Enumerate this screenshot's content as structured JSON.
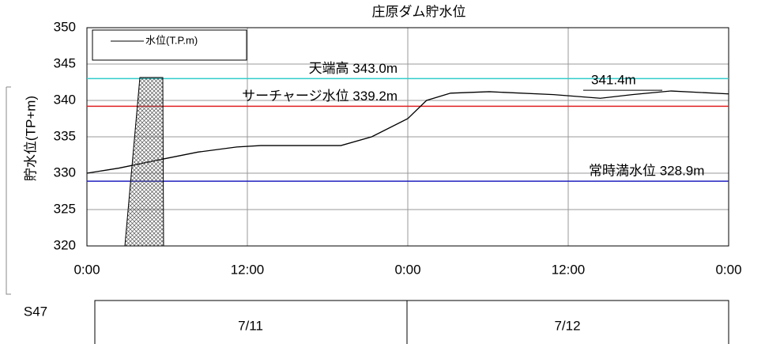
{
  "chart_data": {
    "type": "line",
    "title": "庄原ダム貯水位",
    "y_label": "貯水位(TP+m)",
    "x": [
      0,
      2.4,
      5.3,
      8.3,
      11.2,
      13,
      16,
      19,
      21.3,
      24,
      25.4,
      27.2,
      30.1,
      34.9,
      38.4,
      40.8,
      43.7,
      48
    ],
    "series": [
      {
        "name": "水位(T.P.m)",
        "color": "#000000",
        "values": [
          330.0,
          330.7,
          331.8,
          332.9,
          333.6,
          333.8,
          333.8,
          333.8,
          335.0,
          337.5,
          340.0,
          341.0,
          341.2,
          340.8,
          340.3,
          340.8,
          341.3,
          340.9
        ]
      }
    ],
    "xlim": [
      0,
      48
    ],
    "xticks": [
      {
        "value": 0,
        "label": "0:00"
      },
      {
        "value": 12,
        "label": "12:00"
      },
      {
        "value": 24,
        "label": "0:00"
      },
      {
        "value": 36,
        "label": "12:00"
      },
      {
        "value": 48,
        "label": "0:00"
      }
    ],
    "ylim": [
      320,
      350
    ],
    "yticks": [
      320,
      325,
      330,
      335,
      340,
      345,
      350
    ],
    "grid": true,
    "reference_lines": [
      {
        "label": "天端高 343.0m",
        "value": 343.0,
        "color": "#33cccc"
      },
      {
        "label": "サーチャージ水位 339.2m",
        "value": 339.2,
        "color": "#e02020"
      },
      {
        "label": "常時満水位 328.9m",
        "value": 328.9,
        "color": "#2020c0"
      }
    ],
    "annotation": {
      "label": "341.4m",
      "value": 341.4
    },
    "era": "S47",
    "dates": [
      "7/11",
      "7/12"
    ]
  }
}
